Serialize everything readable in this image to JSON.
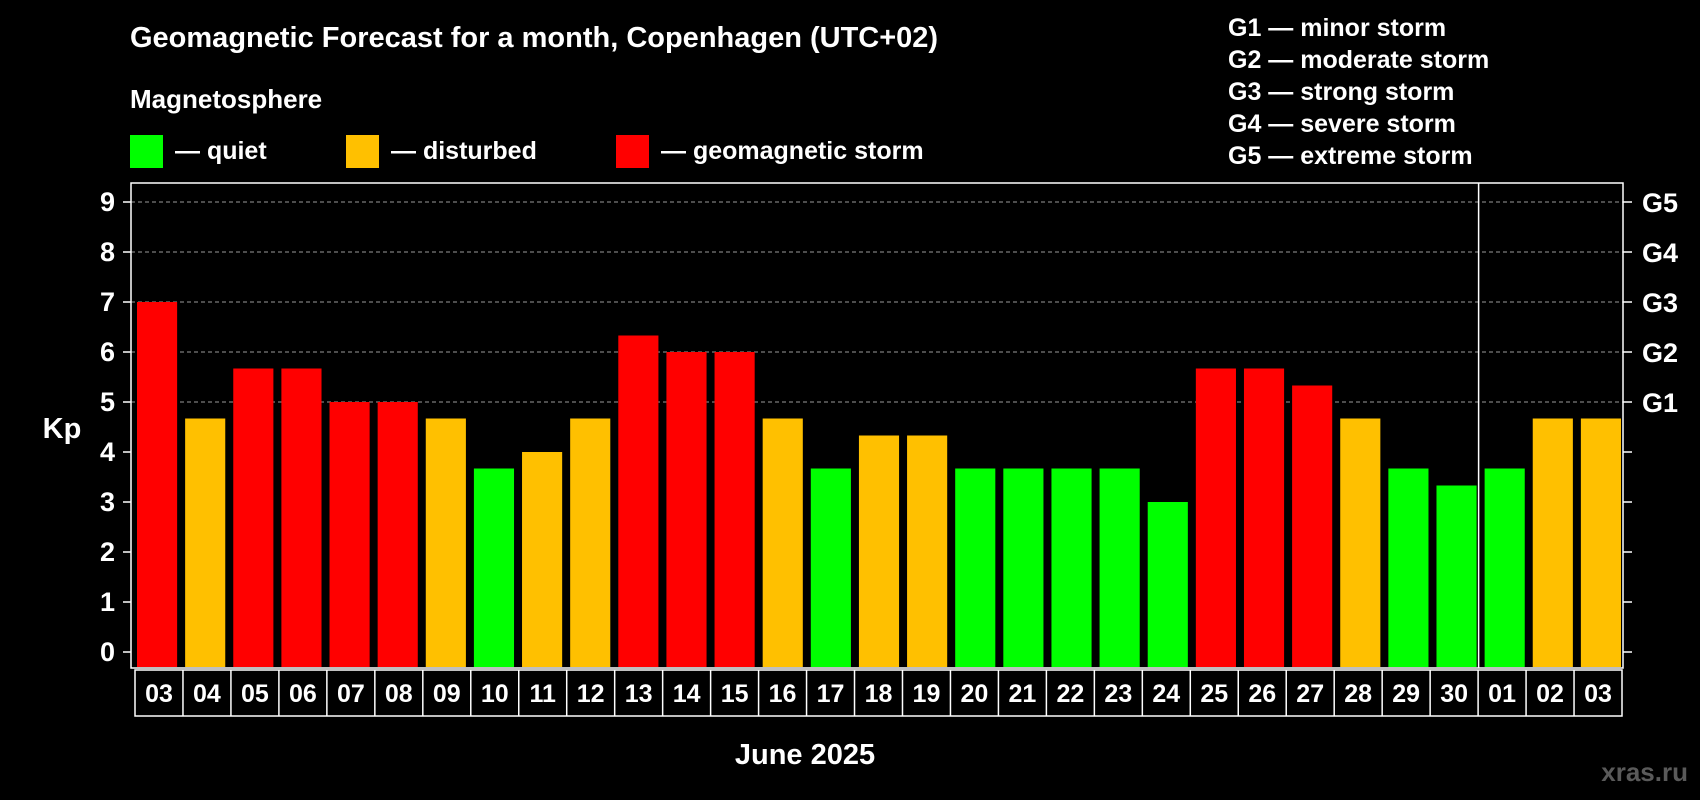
{
  "header": {
    "title": "Geomagnetic Forecast for a month, Copenhagen (UTC+02)",
    "subtitle": "Magnetosphere"
  },
  "legend": [
    {
      "label": "— quiet",
      "color": "#00ff00"
    },
    {
      "label": "— disturbed",
      "color": "#ffc000"
    },
    {
      "label": "— geomagnetic storm",
      "color": "#ff0000"
    }
  ],
  "g_scale": [
    "G1 — minor storm",
    "G2 — moderate storm",
    "G3 — strong storm",
    "G4 — severe storm",
    "G5 — extreme storm"
  ],
  "watermark": "xras.ru",
  "colors": {
    "quiet": "#00ff00",
    "disturbed": "#ffc000",
    "storm": "#ff0000"
  },
  "chart_data": {
    "type": "bar",
    "title": "Geomagnetic Forecast for a month, Copenhagen (UTC+02)",
    "xlabel": "June 2025",
    "ylabel": "Kp",
    "ylim": [
      0,
      9
    ],
    "yticks": [
      0,
      1,
      2,
      3,
      4,
      5,
      6,
      7,
      8,
      9
    ],
    "right_ticks": [
      {
        "value": 5,
        "label": "G1"
      },
      {
        "value": 6,
        "label": "G2"
      },
      {
        "value": 7,
        "label": "G3"
      },
      {
        "value": 8,
        "label": "G4"
      },
      {
        "value": 9,
        "label": "G5"
      }
    ],
    "grid_values": [
      5,
      6,
      7,
      8,
      9
    ],
    "month_divider_after_index": 27,
    "categories": [
      "03",
      "04",
      "05",
      "06",
      "07",
      "08",
      "09",
      "10",
      "11",
      "12",
      "13",
      "14",
      "15",
      "16",
      "17",
      "18",
      "19",
      "20",
      "21",
      "22",
      "23",
      "24",
      "25",
      "26",
      "27",
      "28",
      "29",
      "30",
      "01",
      "02",
      "03"
    ],
    "values": [
      7.0,
      4.67,
      5.67,
      5.67,
      5.0,
      5.0,
      4.67,
      3.67,
      4.0,
      4.67,
      6.33,
      6.0,
      6.0,
      4.67,
      3.67,
      4.33,
      4.33,
      3.67,
      3.67,
      3.67,
      3.67,
      3.0,
      5.67,
      5.67,
      5.33,
      4.67,
      3.67,
      3.33,
      3.67,
      4.67,
      4.67
    ],
    "levels": [
      "storm",
      "disturbed",
      "storm",
      "storm",
      "storm",
      "storm",
      "disturbed",
      "quiet",
      "disturbed",
      "disturbed",
      "storm",
      "storm",
      "storm",
      "disturbed",
      "quiet",
      "disturbed",
      "disturbed",
      "quiet",
      "quiet",
      "quiet",
      "quiet",
      "quiet",
      "storm",
      "storm",
      "storm",
      "disturbed",
      "quiet",
      "quiet",
      "quiet",
      "disturbed",
      "disturbed"
    ]
  }
}
